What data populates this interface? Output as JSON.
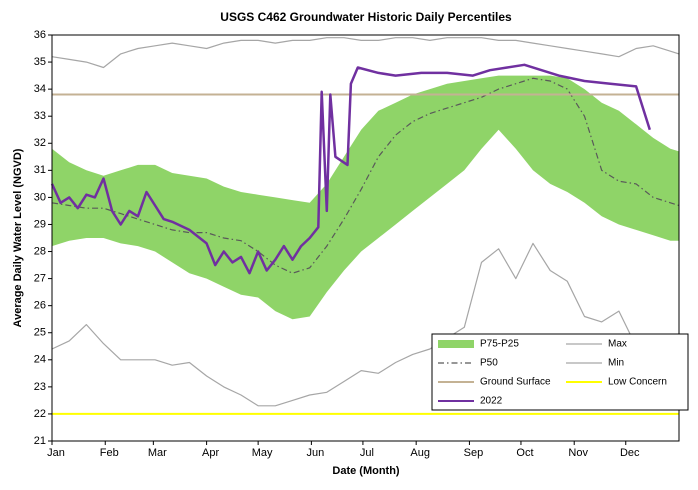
{
  "chart_data": {
    "type": "line",
    "title": "USGS C462 Groundwater Historic Daily Percentiles",
    "x_label": "Date (Month)",
    "y_label": "Average Daily Water Level (NGVD)",
    "xlim": [
      0,
      365
    ],
    "ylim": [
      21,
      36
    ],
    "yticks": [
      21,
      22,
      23,
      24,
      25,
      26,
      27,
      28,
      29,
      30,
      31,
      32,
      33,
      34,
      35,
      36
    ],
    "xticks": [
      {
        "value": 0,
        "label": "Jan"
      },
      {
        "value": 31,
        "label": "Feb"
      },
      {
        "value": 59,
        "label": "Mar"
      },
      {
        "value": 90,
        "label": "Apr"
      },
      {
        "value": 120,
        "label": "May"
      },
      {
        "value": 151,
        "label": "Jun"
      },
      {
        "value": 181,
        "label": "Jul"
      },
      {
        "value": 212,
        "label": "Aug"
      },
      {
        "value": 243,
        "label": "Sep"
      },
      {
        "value": 273,
        "label": "Oct"
      },
      {
        "value": 304,
        "label": "Nov"
      },
      {
        "value": 334,
        "label": "Dec"
      }
    ],
    "x": [
      0,
      10,
      20,
      30,
      40,
      50,
      60,
      70,
      80,
      90,
      100,
      110,
      120,
      130,
      140,
      150,
      160,
      170,
      180,
      190,
      200,
      210,
      220,
      230,
      240,
      250,
      260,
      270,
      280,
      290,
      300,
      310,
      320,
      330,
      340,
      350,
      360,
      365
    ],
    "series": [
      {
        "name": "P75-P25",
        "style": "band",
        "color": "#8fd468",
        "upper": [
          31.8,
          31.3,
          31.0,
          30.8,
          31.0,
          31.2,
          31.2,
          30.9,
          30.8,
          30.7,
          30.4,
          30.2,
          30.1,
          30.0,
          29.9,
          29.8,
          30.5,
          31.5,
          32.5,
          33.2,
          33.5,
          33.8,
          34.0,
          34.2,
          34.3,
          34.4,
          34.5,
          34.5,
          34.5,
          34.5,
          34.4,
          34.0,
          33.5,
          33.2,
          32.7,
          32.2,
          31.8,
          31.7
        ],
        "lower": [
          28.2,
          28.4,
          28.5,
          28.5,
          28.3,
          28.2,
          28.0,
          27.6,
          27.2,
          27.0,
          26.7,
          26.4,
          26.3,
          25.8,
          25.5,
          25.6,
          26.5,
          27.3,
          28.0,
          28.5,
          29.0,
          29.5,
          30.0,
          30.5,
          31.0,
          31.8,
          32.5,
          31.8,
          31.0,
          30.5,
          30.2,
          29.8,
          29.3,
          29.0,
          28.8,
          28.6,
          28.4,
          28.4
        ]
      },
      {
        "name": "Max",
        "style": "line",
        "color": "#a6a6a6",
        "values": [
          35.2,
          35.1,
          35.0,
          34.8,
          35.3,
          35.5,
          35.6,
          35.7,
          35.6,
          35.5,
          35.7,
          35.8,
          35.8,
          35.7,
          35.8,
          35.8,
          35.9,
          35.9,
          35.8,
          35.8,
          35.9,
          35.9,
          35.8,
          35.9,
          35.9,
          35.9,
          35.8,
          35.8,
          35.7,
          35.6,
          35.5,
          35.4,
          35.3,
          35.2,
          35.5,
          35.6,
          35.4,
          35.3
        ]
      },
      {
        "name": "P50",
        "style": "dashdot",
        "color": "#595959",
        "values": [
          29.8,
          29.7,
          29.6,
          29.6,
          29.4,
          29.2,
          29.0,
          28.8,
          28.7,
          28.7,
          28.5,
          28.4,
          28.0,
          27.5,
          27.2,
          27.4,
          28.2,
          29.2,
          30.3,
          31.5,
          32.3,
          32.8,
          33.1,
          33.3,
          33.5,
          33.7,
          34.0,
          34.2,
          34.4,
          34.3,
          34.0,
          33.0,
          31.0,
          30.6,
          30.5,
          30.0,
          29.8,
          29.7
        ]
      },
      {
        "name": "Min",
        "style": "line",
        "color": "#a6a6a6",
        "values": [
          24.4,
          24.7,
          25.3,
          24.6,
          24.0,
          24.0,
          24.0,
          23.8,
          23.9,
          23.4,
          23.0,
          22.7,
          22.3,
          22.3,
          22.5,
          22.7,
          22.8,
          23.2,
          23.6,
          23.5,
          23.9,
          24.2,
          24.4,
          24.8,
          25.2,
          27.6,
          28.1,
          27.0,
          28.3,
          27.3,
          26.9,
          25.6,
          25.4,
          25.8,
          24.5,
          24.9,
          null,
          null
        ]
      },
      {
        "name": "Ground Surface",
        "style": "hline",
        "color": "#c4b294",
        "value": 33.8
      },
      {
        "name": "Low Concern",
        "style": "hline",
        "color": "#ffff00",
        "value": 22
      },
      {
        "name": "2022",
        "style": "line",
        "color": "#7030a0",
        "x": [
          0,
          5,
          10,
          15,
          20,
          25,
          30,
          35,
          40,
          45,
          50,
          55,
          60,
          65,
          70,
          80,
          90,
          95,
          100,
          105,
          110,
          115,
          120,
          125,
          130,
          135,
          140,
          145,
          150,
          155,
          157,
          160,
          162,
          165,
          172,
          174,
          178,
          190,
          200,
          215,
          230,
          245,
          255,
          265,
          275,
          285,
          295,
          310,
          325,
          340,
          348
        ],
        "values": [
          30.5,
          29.8,
          30.0,
          29.6,
          30.1,
          30.0,
          30.7,
          29.5,
          29.0,
          29.5,
          29.3,
          30.2,
          29.7,
          29.2,
          29.1,
          28.8,
          28.3,
          27.5,
          28.0,
          27.6,
          27.8,
          27.2,
          28.0,
          27.3,
          27.7,
          28.2,
          27.7,
          28.2,
          28.5,
          28.9,
          33.9,
          29.5,
          33.8,
          31.5,
          31.2,
          34.2,
          34.8,
          34.6,
          34.5,
          34.6,
          34.6,
          34.5,
          34.7,
          34.8,
          34.9,
          34.7,
          34.5,
          34.3,
          34.2,
          34.1,
          32.5
        ]
      }
    ]
  }
}
